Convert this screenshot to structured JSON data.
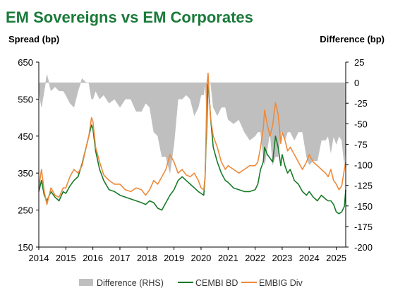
{
  "chart_data": {
    "type": "line",
    "title": "EM Sovereigns vs EM Corporates",
    "ylabel_left": "Spread (bp)",
    "ylabel_right": "Difference (bp)",
    "x_ticks": [
      "2014",
      "2015",
      "2016",
      "2017",
      "2018",
      "2019",
      "2020",
      "2021",
      "2022",
      "2023",
      "2024",
      "2025"
    ],
    "x_range": [
      2014.0,
      2025.35
    ],
    "ylim_left": [
      150,
      650
    ],
    "yticks_left": [
      650,
      550,
      450,
      350,
      250,
      150
    ],
    "ylim_right": [
      -200,
      25
    ],
    "yticks_right": [
      25,
      0,
      -25,
      -50,
      -75,
      -100,
      -125,
      -150,
      -175,
      -200
    ],
    "grid": false,
    "legend_position": "bottom",
    "legend": [
      "Difference (RHS)",
      "CEMBI BD",
      "EMBIG Div"
    ],
    "colors": {
      "title": "#1a7a3a",
      "difference": "#bfbfbf",
      "cembi": "#1a7a2a",
      "embig": "#ef8a3a",
      "axis": "#000000",
      "text": "#000000"
    },
    "series": [
      {
        "name": "CEMBI BD",
        "axis": "left",
        "x": [
          2014.0,
          2014.1,
          2014.2,
          2014.3,
          2014.45,
          2014.6,
          2014.75,
          2014.9,
          2015.0,
          2015.15,
          2015.3,
          2015.45,
          2015.6,
          2015.75,
          2015.85,
          2015.95,
          2016.0,
          2016.1,
          2016.25,
          2016.4,
          2016.6,
          2016.8,
          2017.0,
          2017.2,
          2017.4,
          2017.6,
          2017.8,
          2017.95,
          2018.1,
          2018.25,
          2018.4,
          2018.55,
          2018.7,
          2018.85,
          2019.0,
          2019.15,
          2019.3,
          2019.45,
          2019.6,
          2019.75,
          2019.9,
          2020.0,
          2020.1,
          2020.15,
          2020.18,
          2020.22,
          2020.26,
          2020.3,
          2020.35,
          2020.45,
          2020.6,
          2020.75,
          2020.9,
          2021.0,
          2021.2,
          2021.4,
          2021.6,
          2021.8,
          2022.0,
          2022.1,
          2022.2,
          2022.3,
          2022.35,
          2022.45,
          2022.55,
          2022.65,
          2022.75,
          2022.85,
          2022.95,
          2023.0,
          2023.1,
          2023.2,
          2023.3,
          2023.45,
          2023.6,
          2023.75,
          2023.9,
          2024.0,
          2024.15,
          2024.3,
          2024.45,
          2024.6,
          2024.7,
          2024.8,
          2024.9,
          2025.0,
          2025.1,
          2025.2,
          2025.3,
          2025.35
        ],
        "values": [
          300,
          330,
          290,
          275,
          300,
          285,
          275,
          300,
          295,
          315,
          330,
          340,
          375,
          420,
          450,
          480,
          470,
          410,
          360,
          330,
          305,
          300,
          290,
          285,
          280,
          275,
          270,
          265,
          275,
          270,
          255,
          250,
          270,
          290,
          305,
          330,
          340,
          330,
          320,
          310,
          300,
          295,
          290,
          340,
          420,
          520,
          590,
          560,
          500,
          420,
          380,
          350,
          330,
          325,
          310,
          305,
          300,
          300,
          305,
          320,
          360,
          380,
          420,
          400,
          390,
          380,
          450,
          420,
          370,
          400,
          370,
          350,
          360,
          330,
          320,
          300,
          290,
          300,
          285,
          275,
          290,
          280,
          275,
          275,
          265,
          245,
          240,
          245,
          260,
          305
        ]
      },
      {
        "name": "EMBIG Div",
        "axis": "left",
        "x": [
          2014.0,
          2014.1,
          2014.2,
          2014.3,
          2014.45,
          2014.6,
          2014.75,
          2014.9,
          2015.0,
          2015.15,
          2015.3,
          2015.45,
          2015.6,
          2015.75,
          2015.85,
          2015.95,
          2016.0,
          2016.1,
          2016.25,
          2016.4,
          2016.6,
          2016.8,
          2017.0,
          2017.2,
          2017.4,
          2017.6,
          2017.8,
          2017.95,
          2018.1,
          2018.25,
          2018.4,
          2018.55,
          2018.7,
          2018.85,
          2019.0,
          2019.15,
          2019.3,
          2019.45,
          2019.6,
          2019.75,
          2019.9,
          2020.0,
          2020.1,
          2020.15,
          2020.18,
          2020.22,
          2020.26,
          2020.3,
          2020.35,
          2020.45,
          2020.6,
          2020.75,
          2020.9,
          2021.0,
          2021.2,
          2021.4,
          2021.6,
          2021.8,
          2022.0,
          2022.1,
          2022.2,
          2022.3,
          2022.35,
          2022.45,
          2022.55,
          2022.65,
          2022.75,
          2022.85,
          2022.95,
          2023.0,
          2023.1,
          2023.2,
          2023.3,
          2023.45,
          2023.6,
          2023.75,
          2023.9,
          2024.0,
          2024.15,
          2024.3,
          2024.45,
          2024.6,
          2024.7,
          2024.8,
          2024.9,
          2025.0,
          2025.1,
          2025.2,
          2025.3,
          2025.35
        ],
        "values": [
          310,
          360,
          300,
          265,
          310,
          290,
          285,
          310,
          310,
          340,
          360,
          350,
          370,
          420,
          450,
          500,
          490,
          420,
          380,
          345,
          330,
          320,
          320,
          305,
          300,
          310,
          305,
          290,
          305,
          330,
          320,
          340,
          360,
          400,
          380,
          350,
          360,
          345,
          340,
          350,
          330,
          310,
          305,
          340,
          440,
          590,
          620,
          560,
          500,
          450,
          420,
          380,
          360,
          370,
          360,
          350,
          360,
          370,
          370,
          380,
          420,
          470,
          520,
          480,
          450,
          480,
          540,
          510,
          430,
          460,
          440,
          410,
          420,
          400,
          380,
          360,
          380,
          400,
          380,
          370,
          360,
          350,
          340,
          360,
          330,
          320,
          305,
          315,
          360,
          380
        ]
      },
      {
        "name": "Difference (RHS)",
        "axis": "right",
        "type": "area",
        "x": [
          2014.0,
          2014.1,
          2014.2,
          2014.3,
          2014.45,
          2014.6,
          2014.75,
          2014.9,
          2015.0,
          2015.15,
          2015.3,
          2015.45,
          2015.6,
          2015.75,
          2015.85,
          2015.95,
          2016.0,
          2016.1,
          2016.25,
          2016.4,
          2016.6,
          2016.8,
          2017.0,
          2017.2,
          2017.4,
          2017.6,
          2017.8,
          2017.95,
          2018.1,
          2018.25,
          2018.4,
          2018.55,
          2018.7,
          2018.85,
          2019.0,
          2019.15,
          2019.3,
          2019.45,
          2019.6,
          2019.75,
          2019.9,
          2020.0,
          2020.1,
          2020.15,
          2020.18,
          2020.22,
          2020.26,
          2020.3,
          2020.35,
          2020.45,
          2020.6,
          2020.75,
          2020.9,
          2021.0,
          2021.2,
          2021.4,
          2021.6,
          2021.8,
          2022.0,
          2022.1,
          2022.2,
          2022.3,
          2022.35,
          2022.45,
          2022.55,
          2022.65,
          2022.75,
          2022.85,
          2022.95,
          2023.0,
          2023.1,
          2023.2,
          2023.3,
          2023.45,
          2023.6,
          2023.75,
          2023.9,
          2024.0,
          2024.15,
          2024.3,
          2024.45,
          2024.6,
          2024.7,
          2024.8,
          2024.9,
          2025.0,
          2025.1,
          2025.2,
          2025.3,
          2025.35
        ],
        "values": [
          -10,
          -30,
          -10,
          10,
          -10,
          -5,
          -10,
          -10,
          -15,
          -25,
          -30,
          -10,
          5,
          0,
          0,
          -20,
          -20,
          -10,
          -20,
          -15,
          -25,
          -20,
          -30,
          -20,
          -20,
          -35,
          -35,
          -25,
          -30,
          -60,
          -65,
          -90,
          -90,
          -110,
          -75,
          -20,
          -20,
          -15,
          -20,
          -40,
          -30,
          -15,
          -15,
          0,
          -20,
          -70,
          -30,
          0,
          0,
          -30,
          -40,
          -30,
          -30,
          -45,
          -50,
          -45,
          -60,
          -70,
          -65,
          -60,
          -60,
          -90,
          -100,
          -80,
          -60,
          -100,
          -90,
          -90,
          -60,
          -60,
          -70,
          -60,
          -60,
          -70,
          -60,
          -60,
          -90,
          -100,
          -95,
          -95,
          -70,
          -70,
          -65,
          -85,
          -65,
          -75,
          -65,
          -70,
          -100,
          -75
        ]
      }
    ]
  }
}
